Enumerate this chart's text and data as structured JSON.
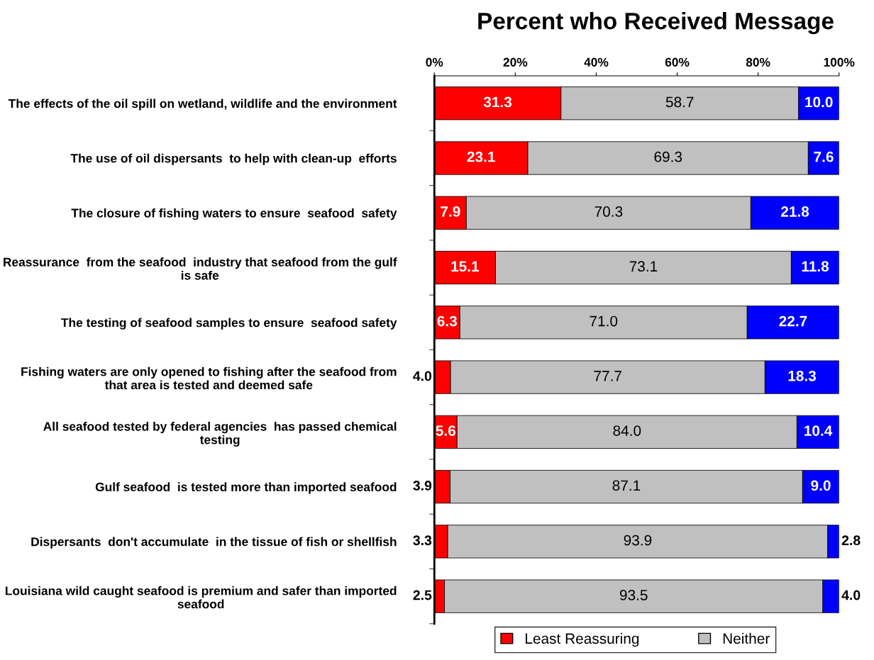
{
  "chart_data": {
    "type": "bar",
    "orientation": "horizontal",
    "stacked": true,
    "title": "Percent who Received Message",
    "categories": [
      "The effects of the oil spill on wetland, wildlife and the environment",
      "The use of oil dispersants  to help with clean-up  efforts",
      "The closure of fishing waters to ensure  seafood  safety",
      "Reassurance  from the seafood  industry that seafood from the gulf is safe",
      "The testing of seafood samples to ensure  seafood safety",
      "Fishing waters are only opened to fishing after the seafood from that area is tested and deemed safe",
      "All seafood tested by federal agencies  has passed chemical testing",
      "Gulf seafood  is tested more than imported seafood",
      "Dispersants  don't accumulate  in the tissue of fish or shellfish",
      "Louisiana wild caught seafood is premium and safer than imported seafood"
    ],
    "series": [
      {
        "name": "Least Reassuring",
        "color": "#ff0000",
        "values": [
          31.3,
          23.1,
          7.9,
          15.1,
          6.3,
          4.0,
          5.6,
          3.9,
          3.3,
          2.5
        ]
      },
      {
        "name": "Neither",
        "color": "#c0c0c0",
        "values": [
          58.7,
          69.3,
          70.3,
          73.1,
          71.0,
          77.7,
          84.0,
          87.1,
          93.9,
          93.5
        ]
      },
      {
        "color": "#0000ff",
        "values": [
          10.0,
          7.6,
          21.8,
          11.8,
          22.7,
          18.3,
          10.4,
          9.0,
          2.8,
          4.0
        ]
      }
    ],
    "value_labels": [
      [
        "31.3",
        "23.1",
        "7.9",
        "15.1",
        "6.3",
        "4.0",
        "5.6",
        "3.9",
        "3.3",
        "2.5"
      ],
      [
        "58.7",
        "69.3",
        "70.3",
        "73.1",
        "71.0",
        "77.7",
        "84.0",
        "87.1",
        "93.9",
        "93.5"
      ],
      [
        "10.0",
        "7.6",
        "21.8",
        "11.8",
        "22.7",
        "18.3",
        "10.4",
        "9.0",
        "2.8",
        "4.0"
      ]
    ],
    "xlim": [
      0,
      100
    ],
    "xticks": [
      {
        "value": 0,
        "label": "0%"
      },
      {
        "value": 20,
        "label": "20%"
      },
      {
        "value": 40,
        "label": "40%"
      },
      {
        "value": 60,
        "label": "60%"
      },
      {
        "value": 80,
        "label": "80%"
      },
      {
        "value": 100,
        "label": "100%"
      }
    ],
    "legend": "bottom",
    "grid": false
  }
}
